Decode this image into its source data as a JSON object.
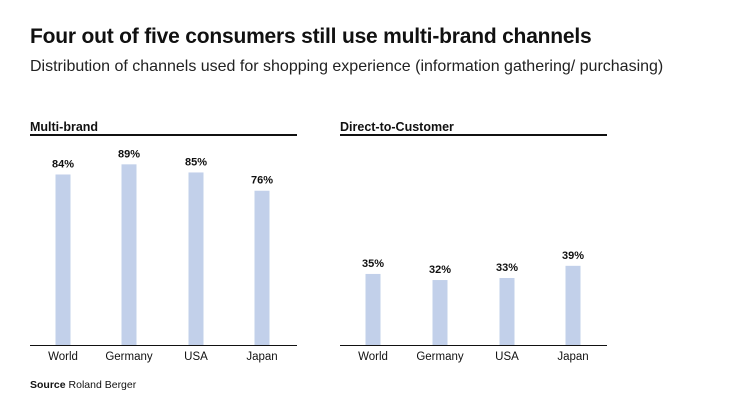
{
  "header": {
    "title": "Four out of five consumers still use multi-brand channels",
    "subtitle": "Distribution of channels used for shopping experience (information gathering/ purchasing)"
  },
  "source": {
    "label": "Source",
    "text": "Roland Berger"
  },
  "colors": {
    "bar": "#c2d0ea",
    "axis": "#111111",
    "text": "#111111"
  },
  "chart_data": [
    {
      "type": "bar",
      "title": "Multi-brand",
      "categories": [
        "World",
        "Germany",
        "USA",
        "Japan"
      ],
      "values": [
        84,
        89,
        85,
        76
      ],
      "labels": [
        "84%",
        "89%",
        "85%",
        "76%"
      ],
      "xlabel": "",
      "ylabel": "",
      "ylim": [
        0,
        100
      ],
      "grid": false
    },
    {
      "type": "bar",
      "title": "Direct-to-Customer",
      "categories": [
        "World",
        "Germany",
        "USA",
        "Japan"
      ],
      "values": [
        35,
        32,
        33,
        39
      ],
      "labels": [
        "35%",
        "32%",
        "33%",
        "39%"
      ],
      "xlabel": "",
      "ylabel": "",
      "ylim": [
        0,
        100
      ],
      "grid": false
    }
  ]
}
